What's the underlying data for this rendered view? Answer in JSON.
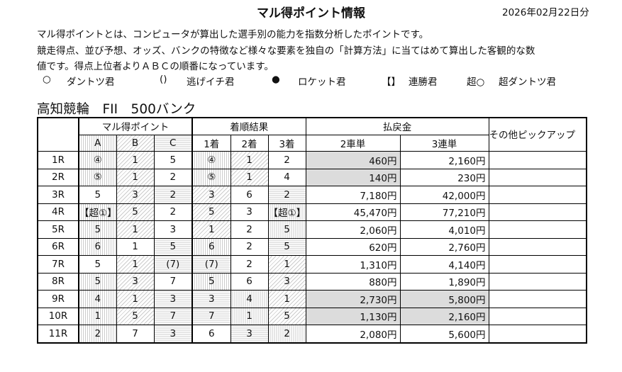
{
  "header": {
    "title": "マル得ポイント情報",
    "date": "2026年02月22日分"
  },
  "description": [
    "マル得ポイントとは、コンピュータが算出した選手別の能力を指数分析したポイントです。",
    "競走得点、並び予想、オッズ、バンクの特徴など様々な要素を独自の「計算方法」に当てはめて算出した客観的な数",
    "値です。得点上位者よりＡＢＣの順番になっています。"
  ],
  "legend": [
    {
      "symbol": "○",
      "label": "ダントツ君"
    },
    {
      "symbol": "()",
      "label": "逃げイチ君"
    },
    {
      "symbol": "●",
      "label": "ロケット君"
    },
    {
      "symbol": "【】",
      "label": "連勝君"
    },
    {
      "symbol": "超○",
      "label": "超ダントツ君"
    }
  ],
  "venue": "高知競輪　FII　500バンク",
  "table": {
    "group_headers": {
      "points": "マル得ポイント",
      "results": "着順結果",
      "payout": "払戻金",
      "other": "その他ピックアップ"
    },
    "sub_headers": {
      "a": "A",
      "b": "B",
      "c": "C",
      "first": "1着",
      "second": "2着",
      "third": "3着",
      "exacta": "2車単",
      "trifecta": "3連単"
    },
    "pattern_legend": {
      "v": "A match (vertical hatch)",
      "d": "B match (diagonal hatch)",
      "h": "C match (horizontal hatch)",
      "highlight_color": "#dcdcdc"
    },
    "rows": [
      {
        "race": "1R",
        "cells": [
          "④",
          "1",
          "5",
          "④",
          "1",
          "2"
        ],
        "pat": [
          "v",
          "d",
          "",
          "v",
          "d",
          ""
        ],
        "exacta": "460円",
        "trifecta": "2,160円",
        "hl": [
          true,
          false
        ],
        "other": ""
      },
      {
        "race": "2R",
        "cells": [
          "⑤",
          "1",
          "2",
          "⑤",
          "1",
          "4"
        ],
        "pat": [
          "v",
          "d",
          "",
          "v",
          "d",
          ""
        ],
        "exacta": "140円",
        "trifecta": "230円",
        "hl": [
          true,
          false
        ],
        "other": ""
      },
      {
        "race": "3R",
        "cells": [
          "5",
          "3",
          "2",
          "3",
          "6",
          "2"
        ],
        "pat": [
          "",
          "d",
          "h",
          "d",
          "",
          "h"
        ],
        "exacta": "7,180円",
        "trifecta": "42,000円",
        "hl": [
          false,
          false
        ],
        "other": ""
      },
      {
        "race": "4R",
        "cells": [
          "【超①】",
          "5",
          "2",
          "5",
          "3",
          "【超①】"
        ],
        "pat": [
          "v",
          "d",
          "",
          "d",
          "",
          "v"
        ],
        "exacta": "45,470円",
        "trifecta": "77,210円",
        "hl": [
          false,
          false
        ],
        "other": ""
      },
      {
        "race": "5R",
        "cells": [
          "5",
          "1",
          "3",
          "1",
          "2",
          "5"
        ],
        "pat": [
          "v",
          "d",
          "",
          "d",
          "",
          "v"
        ],
        "exacta": "2,060円",
        "trifecta": "4,010円",
        "hl": [
          false,
          false
        ],
        "other": ""
      },
      {
        "race": "6R",
        "cells": [
          "6",
          "1",
          "5",
          "6",
          "2",
          "5"
        ],
        "pat": [
          "v",
          "",
          "h",
          "v",
          "",
          "h"
        ],
        "exacta": "620円",
        "trifecta": "2,760円",
        "hl": [
          false,
          false
        ],
        "other": ""
      },
      {
        "race": "7R",
        "cells": [
          "5",
          "1",
          "(7)",
          "(7)",
          "2",
          "1"
        ],
        "pat": [
          "",
          "d",
          "h",
          "h",
          "",
          "d"
        ],
        "exacta": "1,310円",
        "trifecta": "4,140円",
        "hl": [
          false,
          false
        ],
        "other": ""
      },
      {
        "race": "8R",
        "cells": [
          "5",
          "3",
          "7",
          "5",
          "6",
          "3"
        ],
        "pat": [
          "v",
          "d",
          "",
          "v",
          "",
          "d"
        ],
        "exacta": "880円",
        "trifecta": "1,890円",
        "hl": [
          false,
          false
        ],
        "other": ""
      },
      {
        "race": "9R",
        "cells": [
          "4",
          "1",
          "3",
          "3",
          "4",
          "1"
        ],
        "pat": [
          "v",
          "d",
          "h",
          "h",
          "v",
          "d"
        ],
        "exacta": "2,730円",
        "trifecta": "5,800円",
        "hl": [
          true,
          true
        ],
        "other": ""
      },
      {
        "race": "10R",
        "cells": [
          "1",
          "5",
          "7",
          "7",
          "1",
          "5"
        ],
        "pat": [
          "v",
          "d",
          "h",
          "h",
          "v",
          "d"
        ],
        "exacta": "1,130円",
        "trifecta": "2,160円",
        "hl": [
          true,
          true
        ],
        "other": ""
      },
      {
        "race": "11R",
        "cells": [
          "2",
          "7",
          "3",
          "6",
          "3",
          "2"
        ],
        "pat": [
          "v",
          "",
          "h",
          "",
          "h",
          "v"
        ],
        "exacta": "2,080円",
        "trifecta": "5,600円",
        "hl": [
          false,
          false
        ],
        "other": ""
      }
    ]
  }
}
